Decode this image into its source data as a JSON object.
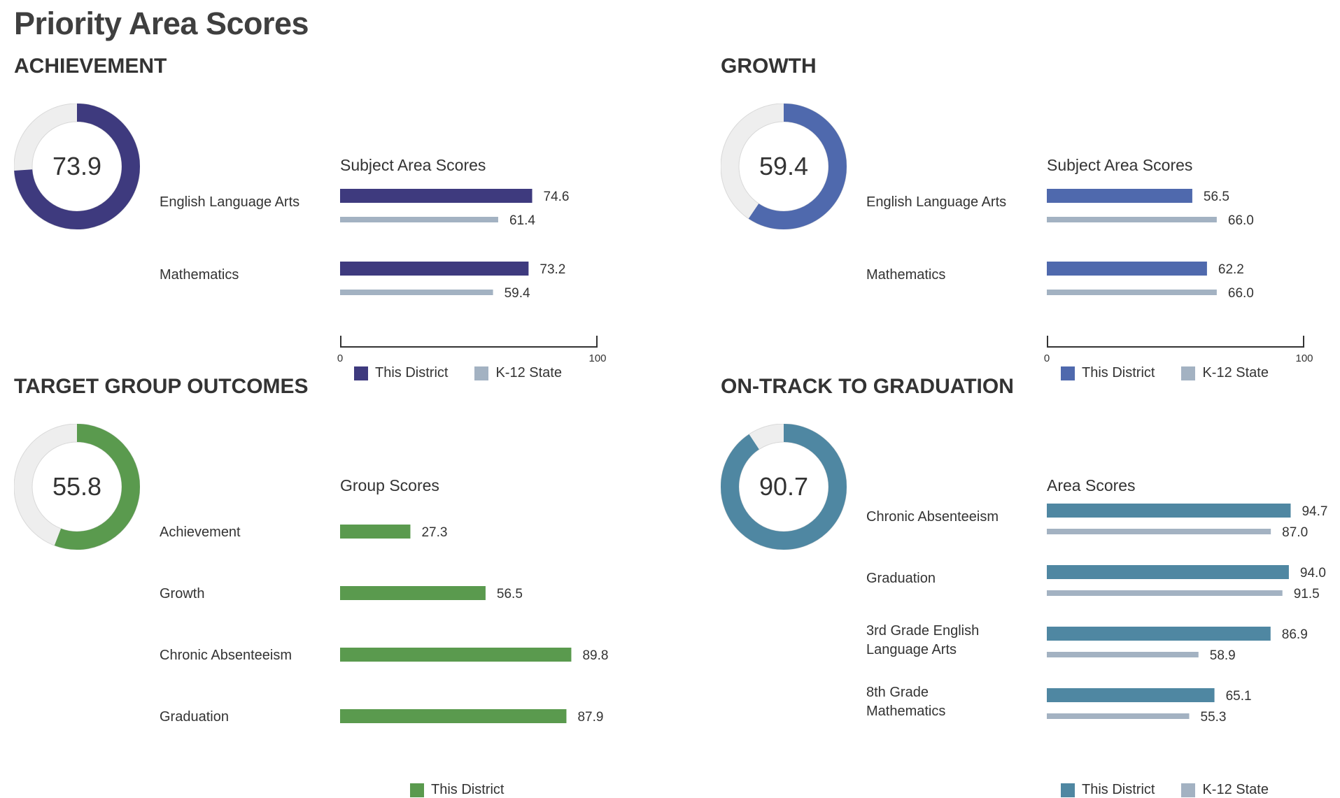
{
  "page_title": "Priority Area Scores",
  "chart_data": [
    {
      "type": "bar",
      "section_title": "ACHIEVEMENT",
      "chart_title": "Subject Area Scores",
      "overall_score": 73.9,
      "overall_label": "73.9",
      "categories": [
        "English Language Arts",
        "Mathematics"
      ],
      "series": [
        {
          "name": "This District",
          "values": [
            74.6,
            73.2
          ],
          "labels": [
            "74.6",
            "73.2"
          ]
        },
        {
          "name": "K-12 State",
          "values": [
            61.4,
            59.4
          ],
          "labels": [
            "61.4",
            "59.4"
          ]
        }
      ],
      "colors": [
        "#3e3a7e",
        "#a3b2c2"
      ],
      "xlim": [
        0,
        100
      ],
      "x_ticks": [
        "0",
        "100"
      ]
    },
    {
      "type": "bar",
      "section_title": "GROWTH",
      "chart_title": "Subject Area Scores",
      "overall_score": 59.4,
      "overall_label": "59.4",
      "categories": [
        "English Language Arts",
        "Mathematics"
      ],
      "series": [
        {
          "name": "This District",
          "values": [
            56.5,
            62.2
          ],
          "labels": [
            "56.5",
            "62.2"
          ]
        },
        {
          "name": "K-12 State",
          "values": [
            66.0,
            66.0
          ],
          "labels": [
            "66.0",
            "66.0"
          ]
        }
      ],
      "colors": [
        "#4f69ad",
        "#a3b2c2"
      ],
      "xlim": [
        0,
        100
      ],
      "x_ticks": [
        "0",
        "100"
      ]
    },
    {
      "type": "bar",
      "section_title": "TARGET GROUP OUTCOMES",
      "chart_title": "Group Scores",
      "overall_score": 55.8,
      "overall_label": "55.8",
      "categories": [
        "Achievement",
        "Growth",
        "Chronic Absenteeism",
        "Graduation"
      ],
      "series": [
        {
          "name": "This District",
          "values": [
            27.3,
            56.5,
            89.8,
            87.9
          ],
          "labels": [
            "27.3",
            "56.5",
            "89.8",
            "87.9"
          ]
        }
      ],
      "colors": [
        "#5a9a4e"
      ],
      "xlim": [
        0,
        100
      ],
      "x_ticks": [
        "0",
        "100"
      ]
    },
    {
      "type": "bar",
      "section_title": "ON-TRACK TO GRADUATION",
      "chart_title": "Area Scores",
      "overall_score": 90.7,
      "overall_label": "90.7",
      "categories": [
        "Chronic Absenteeism",
        "Graduation",
        "3rd Grade English Language Arts",
        "8th Grade Mathematics"
      ],
      "series": [
        {
          "name": "This District",
          "values": [
            94.7,
            94.0,
            86.9,
            65.1
          ],
          "labels": [
            "94.7",
            "94.0",
            "86.9",
            "65.1"
          ]
        },
        {
          "name": "K-12 State",
          "values": [
            87.0,
            91.5,
            58.9,
            55.3
          ],
          "labels": [
            "87.0",
            "91.5",
            "58.9",
            "55.3"
          ]
        }
      ],
      "colors": [
        "#4f87a2",
        "#a3b2c2"
      ],
      "xlim": [
        0,
        100
      ],
      "x_ticks": [
        "0",
        "100"
      ]
    }
  ]
}
